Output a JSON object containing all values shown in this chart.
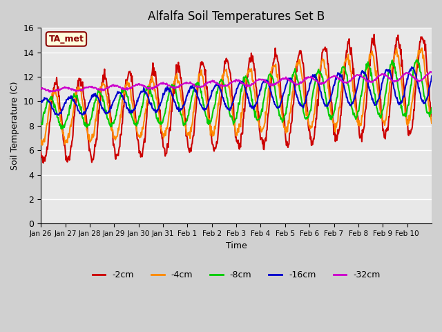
{
  "title": "Alfalfa Soil Temperatures Set B",
  "xlabel": "Time",
  "ylabel": "Soil Temperature (C)",
  "annotation": "TA_met",
  "ylim": [
    0,
    16
  ],
  "yticks": [
    0,
    2,
    4,
    6,
    8,
    10,
    12,
    14,
    16
  ],
  "xtick_labels": [
    "Jan 26",
    "Jan 27",
    "Jan 28",
    "Jan 29",
    "Jan 30",
    "Jan 31",
    "Feb 1",
    "Feb 2",
    "Feb 3",
    "Feb 4",
    "Feb 5",
    "Feb 6",
    "Feb 7",
    "Feb 8",
    "Feb 9",
    "Feb 10"
  ],
  "series": {
    "-2cm": {
      "color": "#cc0000",
      "lw": 1.5
    },
    "-4cm": {
      "color": "#ff8800",
      "lw": 1.5
    },
    "-8cm": {
      "color": "#00cc00",
      "lw": 1.5
    },
    "-16cm": {
      "color": "#0000cc",
      "lw": 1.5
    },
    "-32cm": {
      "color": "#cc00cc",
      "lw": 1.5
    }
  },
  "bg_color": "#e8e8e8",
  "grid_color": "#ffffff",
  "legend_colors": [
    "#cc0000",
    "#ff8800",
    "#00cc00",
    "#0000cc",
    "#cc00cc"
  ],
  "legend_labels": [
    "-2cm",
    "-4cm",
    "-8cm",
    "-16cm",
    "-32cm"
  ],
  "n_days": 16
}
